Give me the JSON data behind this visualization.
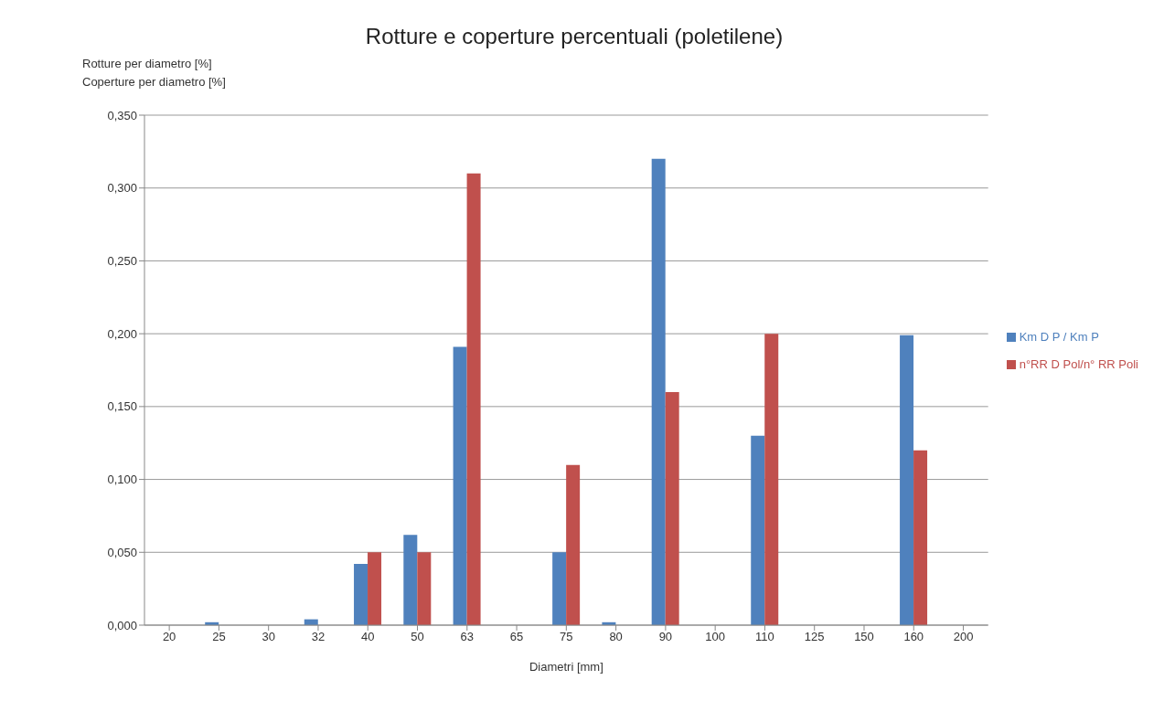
{
  "chart_data": {
    "type": "bar",
    "title": "Rotture e coperture percentuali (poletilene)",
    "ylabel": "Rotture per diametro [%]\nCoperture per diametro [%]",
    "xlabel": "Diametri [mm]",
    "categories": [
      "20",
      "25",
      "30",
      "32",
      "40",
      "50",
      "63",
      "65",
      "75",
      "80",
      "90",
      "100",
      "110",
      "125",
      "150",
      "160",
      "200"
    ],
    "series": [
      {
        "name": "Km D P / Km P",
        "color": "#4f81bd",
        "values": [
          0,
          0.002,
          0,
          0.004,
          0.042,
          0.062,
          0.191,
          0,
          0.05,
          0.002,
          0.32,
          0,
          0.13,
          0,
          0,
          0.199,
          0
        ]
      },
      {
        "name": "n°RR D Pol/n° RR Poli",
        "color": "#c0504d",
        "values": [
          0,
          0,
          0,
          0,
          0.05,
          0.05,
          0.31,
          0,
          0.11,
          0,
          0.16,
          0,
          0.2,
          0,
          0,
          0.12,
          0
        ]
      }
    ],
    "ylim": [
      0,
      0.35
    ],
    "yticks": [
      {
        "value": 0,
        "label": "0,000"
      },
      {
        "value": 0.05,
        "label": "0,050"
      },
      {
        "value": 0.1,
        "label": "0,100"
      },
      {
        "value": 0.15,
        "label": "0,150"
      },
      {
        "value": 0.2,
        "label": "0,200"
      },
      {
        "value": 0.25,
        "label": "0,250"
      },
      {
        "value": 0.3,
        "label": "0,300"
      },
      {
        "value": 0.35,
        "label": "0,350"
      }
    ],
    "grid": "y",
    "legend": "right"
  }
}
